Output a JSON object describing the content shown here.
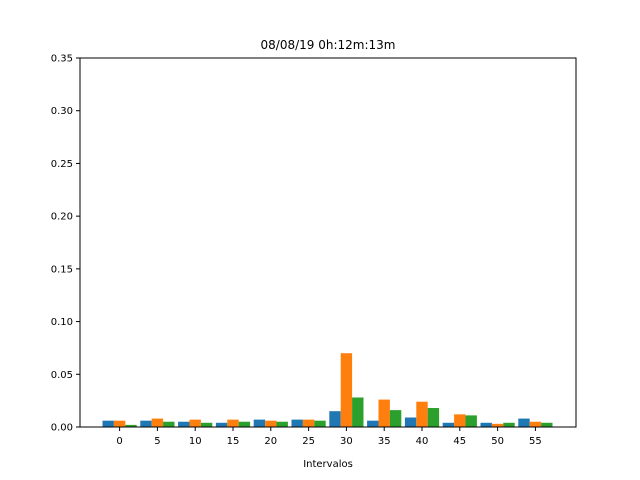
{
  "chart_data": {
    "type": "bar",
    "title": "08/08/19 0h:12m:13m",
    "xlabel": "Intervalos",
    "ylabel": "",
    "categories": [
      "0",
      "5",
      "10",
      "15",
      "20",
      "25",
      "30",
      "35",
      "40",
      "45",
      "50",
      "55"
    ],
    "ylim": [
      0,
      0.35
    ],
    "yticks": [
      "0.00",
      "0.05",
      "0.10",
      "0.15",
      "0.20",
      "0.25",
      "0.30",
      "0.35"
    ],
    "grid": false,
    "legend": "none",
    "series": [
      {
        "color": "#1f77b4",
        "values": [
          0.006,
          0.006,
          0.005,
          0.004,
          0.007,
          0.007,
          0.015,
          0.006,
          0.009,
          0.004,
          0.004,
          0.008
        ]
      },
      {
        "color": "#ff7f0e",
        "values": [
          0.006,
          0.008,
          0.007,
          0.007,
          0.006,
          0.007,
          0.07,
          0.026,
          0.024,
          0.012,
          0.003,
          0.005
        ]
      },
      {
        "color": "#2ca02c",
        "values": [
          0.002,
          0.005,
          0.004,
          0.005,
          0.005,
          0.006,
          0.028,
          0.016,
          0.018,
          0.011,
          0.004,
          0.004
        ]
      }
    ]
  }
}
